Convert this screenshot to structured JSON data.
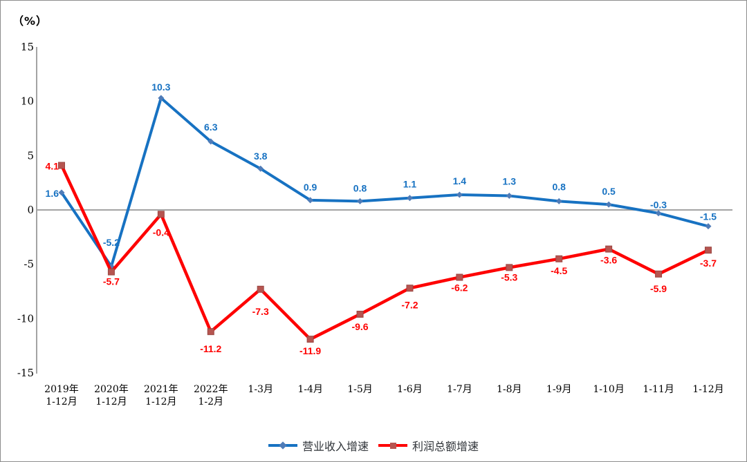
{
  "chart_data": {
    "type": "line",
    "unit_label": "（%）",
    "categories": [
      "2019年\n1-12月",
      "2020年\n1-12月",
      "2021年\n1-12月",
      "2022年\n1-2月",
      "1-3月",
      "1-4月",
      "1-5月",
      "1-6月",
      "1-7月",
      "1-8月",
      "1-9月",
      "1-10月",
      "1-11月",
      "1-12月"
    ],
    "series": [
      {
        "name": "营业收入增速",
        "values": [
          1.6,
          -5.2,
          10.3,
          6.3,
          3.8,
          0.9,
          0.8,
          1.1,
          1.4,
          1.3,
          0.8,
          0.5,
          -0.3,
          -1.5
        ],
        "color": "#1772c2",
        "marker": "diamond",
        "marker_color": "#4f7cb8",
        "label_color": "#1772c2",
        "label_position": "above"
      },
      {
        "name": "利润总额增速",
        "values": [
          4.1,
          -5.7,
          -0.4,
          -11.2,
          -7.3,
          -11.9,
          -9.6,
          -7.2,
          -6.2,
          -5.3,
          -4.5,
          -3.6,
          -5.9,
          -3.7
        ],
        "color": "#fe0000",
        "marker": "square",
        "marker_color": "#b65550",
        "label_color": "#fe0000",
        "label_position": "below"
      }
    ],
    "ylabel": "（%）",
    "xlabel": "",
    "ylim": [
      -15,
      15
    ],
    "yticks": [
      15,
      10,
      5,
      0,
      -5,
      -10,
      -15
    ],
    "grid": "zero-baseline-only",
    "legend_position": "bottom-center",
    "axis_color": "#a3a3a3",
    "tick_label_color": "#000000"
  }
}
